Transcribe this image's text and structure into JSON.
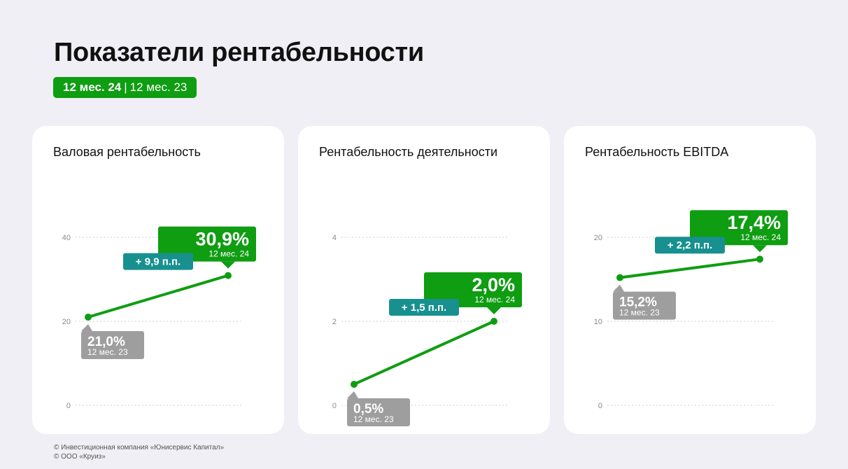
{
  "header": {
    "title": "Показатели рентабельности",
    "period_current": "12 мес. 24",
    "period_separator": "|",
    "period_previous": "12 мес. 23"
  },
  "colors": {
    "current": "#0f9d12",
    "previous": "#9e9e9e",
    "delta": "#17908f",
    "grid": "#cfcfcf"
  },
  "chart_data": [
    {
      "type": "line",
      "title": "Валовая рентабельность",
      "ylim": [
        0,
        40
      ],
      "yticks": [
        0,
        20,
        40
      ],
      "grid": true,
      "points": [
        {
          "value": 21.0,
          "label": "21,0%",
          "period": "12 мес. 23"
        },
        {
          "value": 30.9,
          "label": "30,9%",
          "period": "12 мес. 24"
        }
      ],
      "delta": "+ 9,9 п.п."
    },
    {
      "type": "line",
      "title": "Рентабельность деятельности",
      "ylim": [
        0,
        4
      ],
      "yticks": [
        0,
        2,
        4
      ],
      "grid": true,
      "points": [
        {
          "value": 0.5,
          "label": "0,5%",
          "period": "12 мес. 23"
        },
        {
          "value": 2.0,
          "label": "2,0%",
          "period": "12 мес. 24"
        }
      ],
      "delta": "+ 1,5 п.п."
    },
    {
      "type": "line",
      "title": "Рентабельность EBITDA",
      "ylim": [
        0,
        20
      ],
      "yticks": [
        0,
        10,
        20
      ],
      "grid": true,
      "points": [
        {
          "value": 15.2,
          "label": "15,2%",
          "period": "12 мес. 23"
        },
        {
          "value": 17.4,
          "label": "17,4%",
          "period": "12 мес. 24"
        }
      ],
      "delta": "+ 2,2 п.п."
    }
  ],
  "footer": {
    "line1": "© Инвестиционная компания «Юнисервис Капитал»",
    "line2": "© ООО «Круиз»"
  }
}
